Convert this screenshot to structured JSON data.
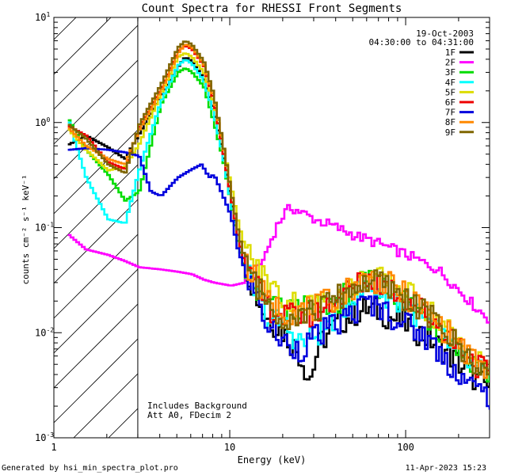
{
  "chart_data": {
    "type": "line",
    "title": "Count Spectra for RHESSI Front Segments",
    "xlabel": "Energy (keV)",
    "ylabel": "counts cm⁻² s⁻¹ keV⁻¹",
    "xscale": "log",
    "yscale": "log",
    "xlim": [
      1,
      300
    ],
    "ylim": [
      0.001,
      10
    ],
    "x_ticks": [
      {
        "value": 1,
        "label": "1"
      },
      {
        "value": 10,
        "label": "10"
      },
      {
        "value": 100,
        "label": "100"
      }
    ],
    "y_ticks": [
      {
        "value": 0.001,
        "base": "10",
        "exp": "-3"
      },
      {
        "value": 0.01,
        "base": "10",
        "exp": "-2"
      },
      {
        "value": 0.1,
        "base": "10",
        "exp": "-1"
      },
      {
        "value": 1,
        "base": "10",
        "exp": "0"
      },
      {
        "value": 10,
        "base": "10",
        "exp": "1"
      }
    ],
    "hatched_region": [
      1,
      3
    ],
    "date": "19-Oct-2003",
    "time_range": "04:30:00 to 04:31:00",
    "annotations": [
      "Includes Background",
      "Att A0, FDecim 2"
    ],
    "legend_position": "top-right",
    "series": [
      {
        "name": "1F",
        "color": "#000000",
        "points": [
          [
            1.2,
            0.62
          ],
          [
            1.5,
            0.75
          ],
          [
            2,
            0.58
          ],
          [
            2.5,
            0.45
          ],
          [
            3,
            0.78
          ],
          [
            4,
            1.8
          ],
          [
            5,
            3.4
          ],
          [
            5.5,
            4.2
          ],
          [
            6,
            3.8
          ],
          [
            7,
            2.6
          ],
          [
            8,
            1.3
          ],
          [
            9,
            0.5
          ],
          [
            10,
            0.18
          ],
          [
            11,
            0.08
          ],
          [
            12,
            0.045
          ],
          [
            14,
            0.022
          ],
          [
            16,
            0.014
          ],
          [
            20,
            0.01
          ],
          [
            25,
            0.006
          ],
          [
            28,
            0.0035
          ],
          [
            32,
            0.008
          ],
          [
            40,
            0.012
          ],
          [
            50,
            0.015
          ],
          [
            60,
            0.017
          ],
          [
            70,
            0.016
          ],
          [
            80,
            0.014
          ],
          [
            100,
            0.012
          ],
          [
            130,
            0.009
          ],
          [
            160,
            0.007
          ],
          [
            200,
            0.005
          ],
          [
            250,
            0.0035
          ],
          [
            300,
            0.003
          ]
        ]
      },
      {
        "name": "2F",
        "color": "#ff00ff",
        "points": [
          [
            1.2,
            0.085
          ],
          [
            1.5,
            0.062
          ],
          [
            2,
            0.055
          ],
          [
            2.5,
            0.048
          ],
          [
            3,
            0.042
          ],
          [
            4,
            0.04
          ],
          [
            5,
            0.038
          ],
          [
            6,
            0.036
          ],
          [
            7,
            0.032
          ],
          [
            8,
            0.03
          ],
          [
            10,
            0.028
          ],
          [
            12,
            0.03
          ],
          [
            14,
            0.038
          ],
          [
            16,
            0.06
          ],
          [
            18,
            0.1
          ],
          [
            20,
            0.135
          ],
          [
            22,
            0.155
          ],
          [
            25,
            0.14
          ],
          [
            30,
            0.12
          ],
          [
            40,
            0.1
          ],
          [
            50,
            0.085
          ],
          [
            70,
            0.07
          ],
          [
            100,
            0.055
          ],
          [
            150,
            0.04
          ],
          [
            200,
            0.025
          ],
          [
            250,
            0.017
          ],
          [
            300,
            0.013
          ]
        ]
      },
      {
        "name": "3F",
        "color": "#00dd00",
        "points": [
          [
            1.2,
            1.05
          ],
          [
            1.5,
            0.55
          ],
          [
            2,
            0.32
          ],
          [
            2.5,
            0.18
          ],
          [
            3,
            0.22
          ],
          [
            4,
            1.5
          ],
          [
            5,
            3.0
          ],
          [
            5.5,
            3.3
          ],
          [
            6,
            3.0
          ],
          [
            7,
            2.2
          ],
          [
            8,
            1.0
          ],
          [
            9,
            0.45
          ],
          [
            10,
            0.17
          ],
          [
            11,
            0.07
          ],
          [
            12,
            0.04
          ],
          [
            14,
            0.024
          ],
          [
            16,
            0.018
          ],
          [
            20,
            0.016
          ],
          [
            30,
            0.017
          ],
          [
            40,
            0.02
          ],
          [
            50,
            0.026
          ],
          [
            60,
            0.03
          ],
          [
            70,
            0.028
          ],
          [
            80,
            0.025
          ],
          [
            100,
            0.02
          ],
          [
            130,
            0.014
          ],
          [
            160,
            0.01
          ],
          [
            200,
            0.007
          ],
          [
            250,
            0.005
          ],
          [
            300,
            0.004
          ]
        ]
      },
      {
        "name": "4F",
        "color": "#00ffff",
        "points": [
          [
            1.2,
            1.0
          ],
          [
            1.5,
            0.3
          ],
          [
            2,
            0.12
          ],
          [
            2.5,
            0.11
          ],
          [
            3,
            0.35
          ],
          [
            4,
            1.6
          ],
          [
            5,
            3.5
          ],
          [
            5.5,
            4.0
          ],
          [
            6,
            3.6
          ],
          [
            7,
            2.5
          ],
          [
            8,
            1.2
          ],
          [
            9,
            0.48
          ],
          [
            10,
            0.17
          ],
          [
            11,
            0.08
          ],
          [
            12,
            0.045
          ],
          [
            14,
            0.022
          ],
          [
            16,
            0.014
          ],
          [
            20,
            0.012
          ],
          [
            25,
            0.008
          ],
          [
            30,
            0.009
          ],
          [
            40,
            0.015
          ],
          [
            50,
            0.022
          ],
          [
            60,
            0.028
          ],
          [
            70,
            0.026
          ],
          [
            80,
            0.022
          ],
          [
            100,
            0.018
          ],
          [
            130,
            0.012
          ],
          [
            160,
            0.009
          ],
          [
            200,
            0.006
          ],
          [
            250,
            0.0045
          ],
          [
            300,
            0.0035
          ]
        ]
      },
      {
        "name": "5F",
        "color": "#dddd00",
        "points": [
          [
            1.2,
            0.85
          ],
          [
            1.5,
            0.55
          ],
          [
            2,
            0.35
          ],
          [
            2.5,
            0.38
          ],
          [
            3,
            0.62
          ],
          [
            4,
            1.9
          ],
          [
            5,
            4.2
          ],
          [
            5.5,
            4.6
          ],
          [
            6,
            4.2
          ],
          [
            7,
            3.0
          ],
          [
            8,
            1.5
          ],
          [
            9,
            0.6
          ],
          [
            10,
            0.25
          ],
          [
            11,
            0.11
          ],
          [
            12,
            0.065
          ],
          [
            14,
            0.04
          ],
          [
            16,
            0.032
          ],
          [
            20,
            0.02
          ],
          [
            30,
            0.018
          ],
          [
            40,
            0.022
          ],
          [
            50,
            0.028
          ],
          [
            60,
            0.033
          ],
          [
            70,
            0.032
          ],
          [
            80,
            0.029
          ],
          [
            100,
            0.024
          ],
          [
            130,
            0.017
          ],
          [
            160,
            0.012
          ],
          [
            200,
            0.008
          ],
          [
            250,
            0.0055
          ],
          [
            300,
            0.0045
          ]
        ]
      },
      {
        "name": "6F",
        "color": "#ee0000",
        "points": [
          [
            1.2,
            0.92
          ],
          [
            1.5,
            0.75
          ],
          [
            2,
            0.42
          ],
          [
            2.5,
            0.36
          ],
          [
            3,
            0.9
          ],
          [
            4,
            2.1
          ],
          [
            5,
            4.8
          ],
          [
            5.5,
            5.4
          ],
          [
            6,
            5.0
          ],
          [
            7,
            3.5
          ],
          [
            8,
            1.6
          ],
          [
            9,
            0.55
          ],
          [
            10,
            0.2
          ],
          [
            11,
            0.08
          ],
          [
            12,
            0.045
          ],
          [
            14,
            0.026
          ],
          [
            16,
            0.018
          ],
          [
            20,
            0.014
          ],
          [
            30,
            0.015
          ],
          [
            40,
            0.021
          ],
          [
            50,
            0.027
          ],
          [
            60,
            0.032
          ],
          [
            70,
            0.03
          ],
          [
            80,
            0.027
          ],
          [
            100,
            0.021
          ],
          [
            130,
            0.015
          ],
          [
            160,
            0.011
          ],
          [
            200,
            0.0075
          ],
          [
            250,
            0.005
          ],
          [
            300,
            0.004
          ]
        ]
      },
      {
        "name": "7F",
        "color": "#0000dd",
        "points": [
          [
            1.2,
            0.55
          ],
          [
            1.5,
            0.57
          ],
          [
            2,
            0.55
          ],
          [
            2.5,
            0.52
          ],
          [
            3,
            0.48
          ],
          [
            3.5,
            0.22
          ],
          [
            4,
            0.2
          ],
          [
            5,
            0.3
          ],
          [
            6,
            0.36
          ],
          [
            6.8,
            0.4
          ],
          [
            7.5,
            0.3
          ],
          [
            8,
            0.32
          ],
          [
            9,
            0.2
          ],
          [
            10,
            0.13
          ],
          [
            11,
            0.06
          ],
          [
            12,
            0.04
          ],
          [
            14,
            0.022
          ],
          [
            16,
            0.012
          ],
          [
            20,
            0.008
          ],
          [
            25,
            0.007
          ],
          [
            30,
            0.009
          ],
          [
            40,
            0.012
          ],
          [
            50,
            0.016
          ],
          [
            60,
            0.019
          ],
          [
            70,
            0.018
          ],
          [
            80,
            0.015
          ],
          [
            100,
            0.012
          ],
          [
            130,
            0.009
          ],
          [
            160,
            0.006
          ],
          [
            200,
            0.004
          ],
          [
            250,
            0.0028
          ],
          [
            300,
            0.0025
          ]
        ]
      },
      {
        "name": "8F",
        "color": "#ff8800",
        "points": [
          [
            1.2,
            0.88
          ],
          [
            1.5,
            0.6
          ],
          [
            2,
            0.45
          ],
          [
            2.5,
            0.4
          ],
          [
            3,
            0.85
          ],
          [
            4,
            2.0
          ],
          [
            5,
            4.6
          ],
          [
            5.5,
            5.6
          ],
          [
            6,
            5.2
          ],
          [
            7,
            3.6
          ],
          [
            8,
            1.7
          ],
          [
            9,
            0.6
          ],
          [
            10,
            0.22
          ],
          [
            11,
            0.09
          ],
          [
            12,
            0.05
          ],
          [
            14,
            0.03
          ],
          [
            16,
            0.02
          ],
          [
            20,
            0.016
          ],
          [
            30,
            0.017
          ],
          [
            40,
            0.022
          ],
          [
            50,
            0.028
          ],
          [
            60,
            0.033
          ],
          [
            70,
            0.031
          ],
          [
            80,
            0.028
          ],
          [
            100,
            0.022
          ],
          [
            130,
            0.016
          ],
          [
            160,
            0.011
          ],
          [
            200,
            0.0075
          ],
          [
            250,
            0.005
          ],
          [
            300,
            0.004
          ]
        ]
      },
      {
        "name": "9F",
        "color": "#806600",
        "points": [
          [
            1.2,
            0.95
          ],
          [
            1.5,
            0.7
          ],
          [
            2,
            0.4
          ],
          [
            2.5,
            0.33
          ],
          [
            3,
            0.95
          ],
          [
            4,
            2.3
          ],
          [
            5,
            5.2
          ],
          [
            5.5,
            6.0
          ],
          [
            6,
            5.5
          ],
          [
            7,
            3.8
          ],
          [
            8,
            1.8
          ],
          [
            9,
            0.62
          ],
          [
            10,
            0.22
          ],
          [
            11,
            0.09
          ],
          [
            12,
            0.05
          ],
          [
            14,
            0.028
          ],
          [
            16,
            0.02
          ],
          [
            20,
            0.014
          ],
          [
            30,
            0.016
          ],
          [
            40,
            0.021
          ],
          [
            50,
            0.027
          ],
          [
            60,
            0.031
          ],
          [
            70,
            0.03
          ],
          [
            80,
            0.026
          ],
          [
            100,
            0.021
          ],
          [
            130,
            0.015
          ],
          [
            160,
            0.011
          ],
          [
            200,
            0.007
          ],
          [
            250,
            0.005
          ],
          [
            300,
            0.004
          ]
        ]
      }
    ]
  },
  "footer": {
    "generated_by": "Generated by hsi_min_spectra_plot.pro",
    "generated_date": "11-Apr-2023 15:23"
  }
}
